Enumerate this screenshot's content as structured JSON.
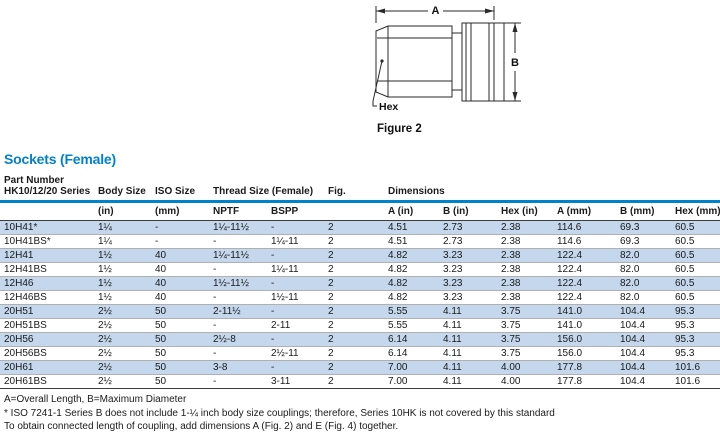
{
  "figure": {
    "caption": "Figure 2",
    "dim_a_label": "A",
    "dim_b_label": "B",
    "hex_label": "Hex"
  },
  "section_title": "Sockets (Female)",
  "table": {
    "header": {
      "part_number_line1": "Part Number",
      "part_number_line2": "HK10/12/20 Series",
      "body_size": "Body Size",
      "iso_size": "ISO Size",
      "thread_size": "Thread Size (Female)",
      "fig": "Fig.",
      "dimensions": "Dimensions"
    },
    "subheader": {
      "body_in": "(in)",
      "iso_mm": "(mm)",
      "nptf": "NPTF",
      "bspp": "BSPP",
      "a_in": "A (in)",
      "b_in": "B (in)",
      "hex_in": "Hex (in)",
      "a_mm": "A (mm)",
      "b_mm": "B (mm)",
      "hex_mm": "Hex (mm)"
    },
    "columns": [
      "part",
      "body",
      "iso",
      "nptf",
      "bspp",
      "fig",
      "a_in",
      "b_in",
      "hex_in",
      "a_mm",
      "b_mm",
      "hex_mm"
    ],
    "rows": [
      {
        "part": "10H41*",
        "body": "1¼",
        "iso": "-",
        "nptf": "1¼-11½",
        "bspp": "-",
        "fig": "2",
        "a_in": "4.51",
        "b_in": "2.73",
        "hex_in": "2.38",
        "a_mm": "114.6",
        "b_mm": "69.3",
        "hex_mm": "60.5"
      },
      {
        "part": "10H41BS*",
        "body": "1¼",
        "iso": "-",
        "nptf": "-",
        "bspp": "1¼-11",
        "fig": "2",
        "a_in": "4.51",
        "b_in": "2.73",
        "hex_in": "2.38",
        "a_mm": "114.6",
        "b_mm": "69.3",
        "hex_mm": "60.5"
      },
      {
        "part": "12H41",
        "body": "1½",
        "iso": "40",
        "nptf": "1¼-11½",
        "bspp": "-",
        "fig": "2",
        "a_in": "4.82",
        "b_in": "3.23",
        "hex_in": "2.38",
        "a_mm": "122.4",
        "b_mm": "82.0",
        "hex_mm": "60.5"
      },
      {
        "part": "12H41BS",
        "body": "1½",
        "iso": "40",
        "nptf": "-",
        "bspp": "1¼-11",
        "fig": "2",
        "a_in": "4.82",
        "b_in": "3.23",
        "hex_in": "2.38",
        "a_mm": "122.4",
        "b_mm": "82.0",
        "hex_mm": "60.5"
      },
      {
        "part": "12H46",
        "body": "1½",
        "iso": "40",
        "nptf": "1½-11½",
        "bspp": "-",
        "fig": "2",
        "a_in": "4.82",
        "b_in": "3.23",
        "hex_in": "2.38",
        "a_mm": "122.4",
        "b_mm": "82.0",
        "hex_mm": "60.5"
      },
      {
        "part": "12H46BS",
        "body": "1½",
        "iso": "40",
        "nptf": "-",
        "bspp": "1½-11",
        "fig": "2",
        "a_in": "4.82",
        "b_in": "3.23",
        "hex_in": "2.38",
        "a_mm": "122.4",
        "b_mm": "82.0",
        "hex_mm": "60.5"
      },
      {
        "part": "20H51",
        "body": "2½",
        "iso": "50",
        "nptf": "2-11½",
        "bspp": "-",
        "fig": "2",
        "a_in": "5.55",
        "b_in": "4.11",
        "hex_in": "3.75",
        "a_mm": "141.0",
        "b_mm": "104.4",
        "hex_mm": "95.3"
      },
      {
        "part": "20H51BS",
        "body": "2½",
        "iso": "50",
        "nptf": "-",
        "bspp": "2-11",
        "fig": "2",
        "a_in": "5.55",
        "b_in": "4.11",
        "hex_in": "3.75",
        "a_mm": "141.0",
        "b_mm": "104.4",
        "hex_mm": "95.3"
      },
      {
        "part": "20H56",
        "body": "2½",
        "iso": "50",
        "nptf": "2½-8",
        "bspp": "-",
        "fig": "2",
        "a_in": "6.14",
        "b_in": "4.11",
        "hex_in": "3.75",
        "a_mm": "156.0",
        "b_mm": "104.4",
        "hex_mm": "95.3"
      },
      {
        "part": "20H56BS",
        "body": "2½",
        "iso": "50",
        "nptf": "-",
        "bspp": "2½-11",
        "fig": "2",
        "a_in": "6.14",
        "b_in": "4.11",
        "hex_in": "3.75",
        "a_mm": "156.0",
        "b_mm": "104.4",
        "hex_mm": "95.3"
      },
      {
        "part": "20H61",
        "body": "2½",
        "iso": "50",
        "nptf": "3-8",
        "bspp": "-",
        "fig": "2",
        "a_in": "7.00",
        "b_in": "4.11",
        "hex_in": "4.00",
        "a_mm": "177.8",
        "b_mm": "104.4",
        "hex_mm": "101.6"
      },
      {
        "part": "20H61BS",
        "body": "2½",
        "iso": "50",
        "nptf": "-",
        "bspp": "3-11",
        "fig": "2",
        "a_in": "7.00",
        "b_in": "4.11",
        "hex_in": "4.00",
        "a_mm": "177.8",
        "b_mm": "104.4",
        "hex_mm": "101.6"
      }
    ]
  },
  "notes": [
    "A=Overall Length, B=Maximum Diameter",
    "* ISO 7241-1 Series B does not include 1-¼ inch body size couplings; therefore, Series 10HK is not covered by this standard",
    "To obtain connected length of coupling, add dimensions A (Fig. 2) and E (Fig. 4) together."
  ],
  "colors": {
    "accent_blue": "#0082CA",
    "row_band": "#C4D7EC"
  }
}
